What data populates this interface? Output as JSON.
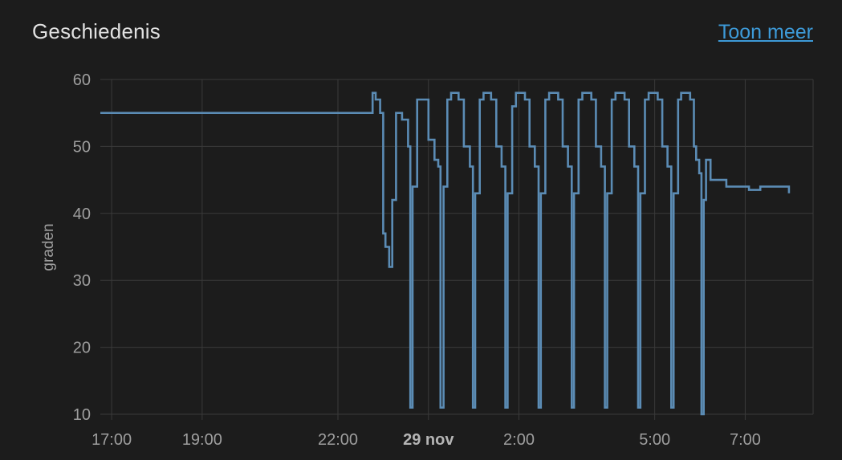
{
  "card": {
    "title": "Geschiedenis",
    "more_link": "Toon meer"
  },
  "colors": {
    "background": "#1c1c1c",
    "grid": "#3a3a3a",
    "series": "#5b8cb5",
    "link": "#3d9ad8"
  },
  "chart_data": {
    "type": "line",
    "ylabel": "graden",
    "xlabel": "",
    "ylim": [
      10,
      60
    ],
    "yticks": [
      10,
      20,
      30,
      40,
      50,
      60
    ],
    "xlim": [
      "16:45",
      "08:30"
    ],
    "xticks": [
      {
        "time": "17:00",
        "label": "17:00",
        "bold": false
      },
      {
        "time": "19:00",
        "label": "19:00",
        "bold": false
      },
      {
        "time": "22:00",
        "label": "22:00",
        "bold": false
      },
      {
        "time": "00:00",
        "label": "29 nov",
        "bold": true
      },
      {
        "time": "02:00",
        "label": "2:00",
        "bold": false
      },
      {
        "time": "05:00",
        "label": "5:00",
        "bold": false
      },
      {
        "time": "07:00",
        "label": "7:00",
        "bold": false
      }
    ],
    "grid": true,
    "legend": "none",
    "series": [
      {
        "step": true,
        "points": [
          [
            "16:45",
            55
          ],
          [
            "22:45",
            55
          ],
          [
            "22:46",
            58
          ],
          [
            "22:50",
            57
          ],
          [
            "22:56",
            55
          ],
          [
            "23:00",
            37
          ],
          [
            "23:03",
            35
          ],
          [
            "23:08",
            32
          ],
          [
            "23:12",
            42
          ],
          [
            "23:17",
            55
          ],
          [
            "23:25",
            54
          ],
          [
            "23:33",
            50
          ],
          [
            "23:36",
            11
          ],
          [
            "23:39",
            44
          ],
          [
            "23:45",
            57
          ],
          [
            "23:55",
            57
          ],
          [
            "00:00",
            51
          ],
          [
            "00:08",
            48
          ],
          [
            "00:13",
            47
          ],
          [
            "00:16",
            11
          ],
          [
            "00:20",
            44
          ],
          [
            "00:25",
            57
          ],
          [
            "00:30",
            58
          ],
          [
            "00:40",
            57
          ],
          [
            "00:47",
            50
          ],
          [
            "00:55",
            47
          ],
          [
            "00:59",
            11
          ],
          [
            "01:02",
            43
          ],
          [
            "01:08",
            57
          ],
          [
            "01:13",
            58
          ],
          [
            "01:23",
            57
          ],
          [
            "01:30",
            50
          ],
          [
            "01:37",
            47
          ],
          [
            "01:42",
            11
          ],
          [
            "01:45",
            43
          ],
          [
            "01:51",
            56
          ],
          [
            "01:56",
            58
          ],
          [
            "02:08",
            57
          ],
          [
            "02:14",
            50
          ],
          [
            "02:21",
            47
          ],
          [
            "02:26",
            11
          ],
          [
            "02:29",
            43
          ],
          [
            "02:35",
            57
          ],
          [
            "02:40",
            58
          ],
          [
            "02:52",
            57
          ],
          [
            "02:58",
            50
          ],
          [
            "03:05",
            47
          ],
          [
            "03:10",
            11
          ],
          [
            "03:13",
            43
          ],
          [
            "03:19",
            57
          ],
          [
            "03:24",
            58
          ],
          [
            "03:36",
            57
          ],
          [
            "03:42",
            50
          ],
          [
            "03:49",
            47
          ],
          [
            "03:54",
            11
          ],
          [
            "03:57",
            43
          ],
          [
            "04:03",
            57
          ],
          [
            "04:08",
            58
          ],
          [
            "04:20",
            57
          ],
          [
            "04:26",
            50
          ],
          [
            "04:33",
            47
          ],
          [
            "04:38",
            11
          ],
          [
            "04:41",
            43
          ],
          [
            "04:47",
            57
          ],
          [
            "04:52",
            58
          ],
          [
            "05:04",
            57
          ],
          [
            "05:10",
            50
          ],
          [
            "05:17",
            47
          ],
          [
            "05:22",
            11
          ],
          [
            "05:25",
            43
          ],
          [
            "05:31",
            57
          ],
          [
            "05:35",
            58
          ],
          [
            "05:47",
            57
          ],
          [
            "05:52",
            50
          ],
          [
            "05:55",
            48
          ],
          [
            "05:59",
            46
          ],
          [
            "06:02",
            10
          ],
          [
            "06:05",
            42
          ],
          [
            "06:08",
            48
          ],
          [
            "06:14",
            45
          ],
          [
            "06:30",
            45
          ],
          [
            "06:35",
            44
          ],
          [
            "06:50",
            44
          ],
          [
            "07:05",
            43.5
          ],
          [
            "07:20",
            44
          ],
          [
            "07:40",
            44
          ],
          [
            "07:52",
            44
          ],
          [
            "07:58",
            43
          ]
        ]
      }
    ]
  }
}
